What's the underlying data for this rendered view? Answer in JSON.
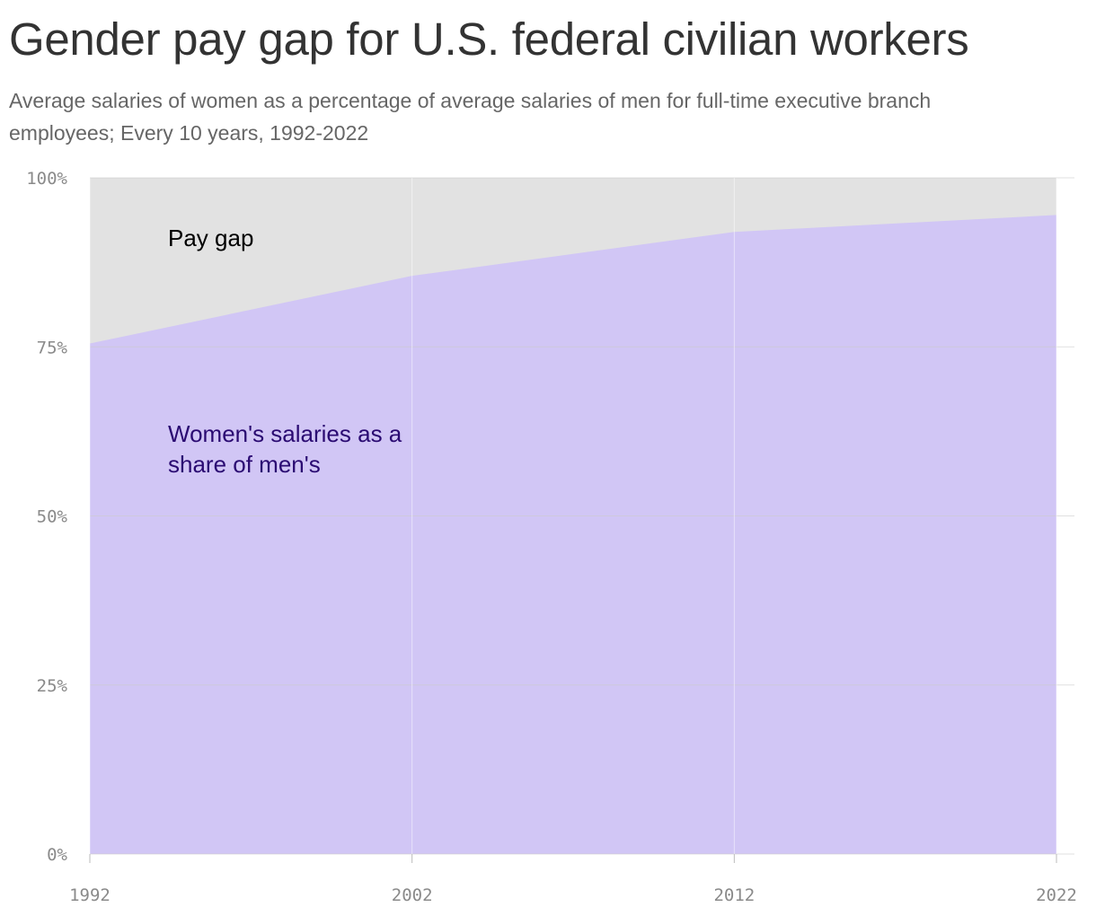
{
  "title": "Gender pay gap for U.S. federal civilian workers",
  "subtitle": "Average salaries of women as a percentage of average salaries of men for full-time executive branch employees; Every 10 years, 1992-2022",
  "colors": {
    "women_area": "#d1c6f5",
    "gap_area": "#e2e2e2",
    "women_label": "#2a0a72",
    "grid": "#cccccc"
  },
  "chart_data": {
    "type": "area",
    "x": [
      1992,
      2002,
      2012,
      2022
    ],
    "series": [
      {
        "name": "Women's salaries as a share of men's",
        "values": [
          75.5,
          85.5,
          92,
          94.5
        ]
      }
    ],
    "ylim": [
      0,
      100
    ],
    "y_ticks": [
      0,
      25,
      50,
      75,
      100
    ],
    "y_tick_labels": [
      "0%",
      "25%",
      "50%",
      "75%",
      "100%"
    ],
    "x_tick_labels": [
      "1992",
      "2002",
      "2012",
      "2022"
    ],
    "annotations": {
      "gap": "Pay gap",
      "women_line1": "Women's salaries as a",
      "women_line2": "share of men's"
    },
    "grid": true
  }
}
